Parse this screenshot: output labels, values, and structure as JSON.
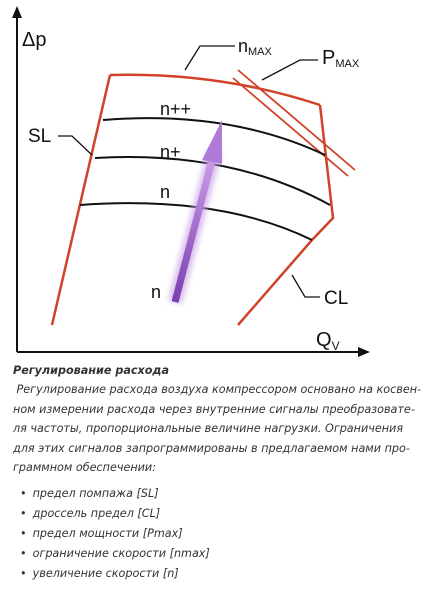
{
  "diagram": {
    "y_axis_label": "Δp",
    "x_axis_label": "Q",
    "x_axis_label_sub": "V",
    "n_max_label": "n",
    "n_max_sub": "MAX",
    "p_max_label": "P",
    "p_max_sub": "MAX",
    "sl_label": "SL",
    "cl_label": "CL",
    "curve_labels": [
      "n++",
      "n+",
      "n"
    ],
    "arrow_label": "n"
  },
  "caption": "Регулирование расхода",
  "paragraph": [
    " Регулирование расхода воздуха компрессором основано на косвен-",
    "ном измерении расхода через внутренние сигналы преобразовате-",
    "ля частоты, пропорциональные величине нагрузки. Ограничения",
    "для этих сигналов запрограммированы в предлагаемом нами про-",
    "граммном обеспечении:"
  ],
  "bullets": [
    "предел помпажа [SL]",
    "дроссель предел [CL]",
    "предел мощности [Pmax]",
    "ограничение скорости [nmax]",
    "увеличение скорости [n]"
  ]
}
